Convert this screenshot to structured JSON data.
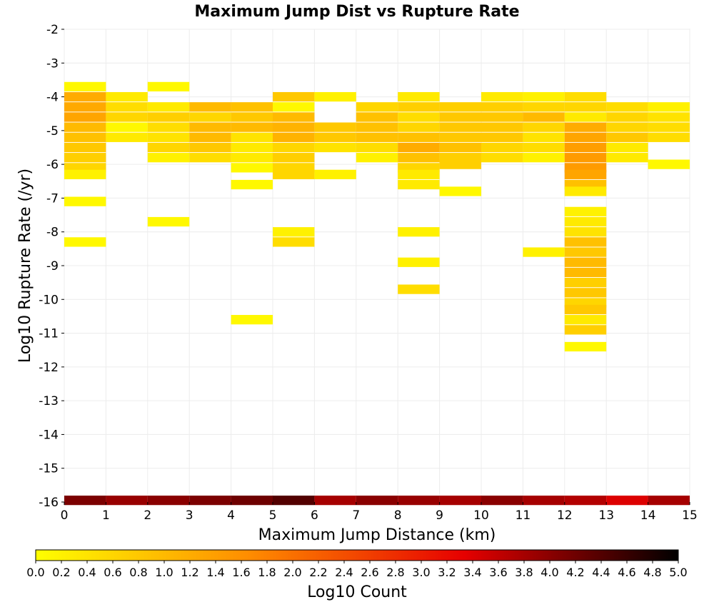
{
  "chart_data": {
    "type": "heatmap",
    "title": "Maximum Jump Dist vs Rupture Rate",
    "xlabel": "Maximum Jump Distance (km)",
    "ylabel": "Log10 Rupture Rate (/yr)",
    "colorbar_label": "Log10 Count",
    "xlim": [
      0,
      15
    ],
    "ylim": [
      -16,
      -2
    ],
    "x_ticks": [
      "0",
      "1",
      "2",
      "3",
      "4",
      "5",
      "6",
      "7",
      "8",
      "9",
      "10",
      "11",
      "12",
      "13",
      "14",
      "15"
    ],
    "y_ticks": [
      "-2",
      "-3",
      "-4",
      "-5",
      "-6",
      "-7",
      "-8",
      "-9",
      "-10",
      "-11",
      "-12",
      "-13",
      "-14",
      "-15",
      "-16"
    ],
    "colorbar_range": [
      0,
      5
    ],
    "colorbar_ticks": [
      "0.0",
      "0.2",
      "0.4",
      "0.6",
      "0.8",
      "1.0",
      "1.2",
      "1.4",
      "1.6",
      "1.8",
      "2.0",
      "2.2",
      "2.4",
      "2.6",
      "2.8",
      "3.0",
      "3.2",
      "3.4",
      "3.6",
      "3.8",
      "4.0",
      "4.2",
      "4.4",
      "4.6",
      "4.8",
      "5.0"
    ],
    "colormap": [
      "#ffff00",
      "#ff8c00",
      "#e60000",
      "#000000"
    ],
    "bin_width_x": 1,
    "bin_height_y": 0.28,
    "grid": true,
    "legend": "colorbar-bottom",
    "cells": [
      {
        "x": 0,
        "y": -3.7,
        "v": 0.1
      },
      {
        "x": 0,
        "y": -4.0,
        "v": 1.2
      },
      {
        "x": 0,
        "y": -4.3,
        "v": 1.25
      },
      {
        "x": 0,
        "y": -4.6,
        "v": 1.3
      },
      {
        "x": 0,
        "y": -4.9,
        "v": 1.0
      },
      {
        "x": 0,
        "y": -5.2,
        "v": 0.9
      },
      {
        "x": 0,
        "y": -5.5,
        "v": 0.8
      },
      {
        "x": 0,
        "y": -5.8,
        "v": 0.7
      },
      {
        "x": 0,
        "y": -6.1,
        "v": 0.6
      },
      {
        "x": 0,
        "y": -6.3,
        "v": 0.2
      },
      {
        "x": 0,
        "y": -7.1,
        "v": 0.1
      },
      {
        "x": 0,
        "y": -8.3,
        "v": 0.1
      },
      {
        "x": 1,
        "y": -4.0,
        "v": 0.3
      },
      {
        "x": 1,
        "y": -4.3,
        "v": 0.5
      },
      {
        "x": 1,
        "y": -4.6,
        "v": 0.6
      },
      {
        "x": 1,
        "y": -4.9,
        "v": 0.1
      },
      {
        "x": 1,
        "y": -5.2,
        "v": 0.3
      },
      {
        "x": 2,
        "y": -3.7,
        "v": 0.1
      },
      {
        "x": 2,
        "y": -4.3,
        "v": 0.3
      },
      {
        "x": 2,
        "y": -4.6,
        "v": 0.7
      },
      {
        "x": 2,
        "y": -4.9,
        "v": 0.5
      },
      {
        "x": 2,
        "y": -5.2,
        "v": 0.4
      },
      {
        "x": 2,
        "y": -5.5,
        "v": 0.6
      },
      {
        "x": 2,
        "y": -5.8,
        "v": 0.2
      },
      {
        "x": 2,
        "y": -7.7,
        "v": 0.1
      },
      {
        "x": 3,
        "y": -4.3,
        "v": 1.0
      },
      {
        "x": 3,
        "y": -4.6,
        "v": 0.6
      },
      {
        "x": 3,
        "y": -4.9,
        "v": 1.0
      },
      {
        "x": 3,
        "y": -5.2,
        "v": 1.0
      },
      {
        "x": 3,
        "y": -5.5,
        "v": 0.8
      },
      {
        "x": 3,
        "y": -5.8,
        "v": 0.5
      },
      {
        "x": 4,
        "y": -4.3,
        "v": 0.9
      },
      {
        "x": 4,
        "y": -4.6,
        "v": 0.8
      },
      {
        "x": 4,
        "y": -4.9,
        "v": 1.0
      },
      {
        "x": 4,
        "y": -5.2,
        "v": 0.4
      },
      {
        "x": 4,
        "y": -5.5,
        "v": 0.3
      },
      {
        "x": 4,
        "y": -5.8,
        "v": 0.3
      },
      {
        "x": 4,
        "y": -6.1,
        "v": 0.1
      },
      {
        "x": 4,
        "y": -6.6,
        "v": 0.1
      },
      {
        "x": 4,
        "y": -10.6,
        "v": 0.1
      },
      {
        "x": 5,
        "y": -4.0,
        "v": 0.8
      },
      {
        "x": 5,
        "y": -4.3,
        "v": 0.1
      },
      {
        "x": 5,
        "y": -4.6,
        "v": 1.0
      },
      {
        "x": 5,
        "y": -4.9,
        "v": 1.1
      },
      {
        "x": 5,
        "y": -5.2,
        "v": 1.1
      },
      {
        "x": 5,
        "y": -5.5,
        "v": 0.6
      },
      {
        "x": 5,
        "y": -5.8,
        "v": 0.7
      },
      {
        "x": 5,
        "y": -6.1,
        "v": 0.6
      },
      {
        "x": 5,
        "y": -6.3,
        "v": 0.6
      },
      {
        "x": 5,
        "y": -8.0,
        "v": 0.2
      },
      {
        "x": 5,
        "y": -8.3,
        "v": 0.5
      },
      {
        "x": 6,
        "y": -4.0,
        "v": 0.2
      },
      {
        "x": 6,
        "y": -4.9,
        "v": 0.8
      },
      {
        "x": 6,
        "y": -5.2,
        "v": 0.8
      },
      {
        "x": 6,
        "y": -5.5,
        "v": 0.4
      },
      {
        "x": 6,
        "y": -6.3,
        "v": 0.2
      },
      {
        "x": 7,
        "y": -4.3,
        "v": 0.6
      },
      {
        "x": 7,
        "y": -4.6,
        "v": 0.9
      },
      {
        "x": 7,
        "y": -4.9,
        "v": 0.9
      },
      {
        "x": 7,
        "y": -5.2,
        "v": 0.9
      },
      {
        "x": 7,
        "y": -5.5,
        "v": 0.5
      },
      {
        "x": 7,
        "y": -5.8,
        "v": 0.2
      },
      {
        "x": 8,
        "y": -4.0,
        "v": 0.3
      },
      {
        "x": 8,
        "y": -4.3,
        "v": 0.7
      },
      {
        "x": 8,
        "y": -4.6,
        "v": 0.5
      },
      {
        "x": 8,
        "y": -4.9,
        "v": 0.6
      },
      {
        "x": 8,
        "y": -5.2,
        "v": 0.9
      },
      {
        "x": 8,
        "y": -5.5,
        "v": 1.2
      },
      {
        "x": 8,
        "y": -5.8,
        "v": 0.9
      },
      {
        "x": 8,
        "y": -6.1,
        "v": 0.6
      },
      {
        "x": 8,
        "y": -6.3,
        "v": 0.3
      },
      {
        "x": 8,
        "y": -6.6,
        "v": 0.3
      },
      {
        "x": 8,
        "y": -8.0,
        "v": 0.2
      },
      {
        "x": 8,
        "y": -8.9,
        "v": 0.2
      },
      {
        "x": 8,
        "y": -9.7,
        "v": 0.5
      },
      {
        "x": 9,
        "y": -4.3,
        "v": 0.7
      },
      {
        "x": 9,
        "y": -4.6,
        "v": 0.8
      },
      {
        "x": 9,
        "y": -4.9,
        "v": 0.8
      },
      {
        "x": 9,
        "y": -5.2,
        "v": 0.8
      },
      {
        "x": 9,
        "y": -5.5,
        "v": 0.9
      },
      {
        "x": 9,
        "y": -5.8,
        "v": 0.7
      },
      {
        "x": 9,
        "y": -6.0,
        "v": 0.7
      },
      {
        "x": 9,
        "y": -6.8,
        "v": 0.1
      },
      {
        "x": 10,
        "y": -4.0,
        "v": 0.3
      },
      {
        "x": 10,
        "y": -4.3,
        "v": 0.7
      },
      {
        "x": 10,
        "y": -4.6,
        "v": 0.8
      },
      {
        "x": 10,
        "y": -4.9,
        "v": 0.8
      },
      {
        "x": 10,
        "y": -5.2,
        "v": 0.8
      },
      {
        "x": 10,
        "y": -5.5,
        "v": 0.6
      },
      {
        "x": 10,
        "y": -5.8,
        "v": 0.5
      },
      {
        "x": 11,
        "y": -4.0,
        "v": 0.2
      },
      {
        "x": 11,
        "y": -4.3,
        "v": 0.6
      },
      {
        "x": 11,
        "y": -4.6,
        "v": 1.0
      },
      {
        "x": 11,
        "y": -4.9,
        "v": 0.6
      },
      {
        "x": 11,
        "y": -5.2,
        "v": 0.4
      },
      {
        "x": 11,
        "y": -5.5,
        "v": 0.5
      },
      {
        "x": 11,
        "y": -5.8,
        "v": 0.2
      },
      {
        "x": 11,
        "y": -8.6,
        "v": 0.2
      },
      {
        "x": 12,
        "y": -4.0,
        "v": 0.5
      },
      {
        "x": 12,
        "y": -4.3,
        "v": 0.6
      },
      {
        "x": 12,
        "y": -4.6,
        "v": 0.3
      },
      {
        "x": 12,
        "y": -4.9,
        "v": 1.2
      },
      {
        "x": 12,
        "y": -5.2,
        "v": 1.3
      },
      {
        "x": 12,
        "y": -5.5,
        "v": 1.4
      },
      {
        "x": 12,
        "y": -5.8,
        "v": 1.45
      },
      {
        "x": 12,
        "y": -6.1,
        "v": 1.45
      },
      {
        "x": 12,
        "y": -6.3,
        "v": 1.3
      },
      {
        "x": 12,
        "y": -6.6,
        "v": 0.9
      },
      {
        "x": 12,
        "y": -6.8,
        "v": 0.3
      },
      {
        "x": 12,
        "y": -7.4,
        "v": 0.2
      },
      {
        "x": 12,
        "y": -7.7,
        "v": 0.3
      },
      {
        "x": 12,
        "y": -8.0,
        "v": 0.4
      },
      {
        "x": 12,
        "y": -8.3,
        "v": 0.9
      },
      {
        "x": 12,
        "y": -8.6,
        "v": 0.8
      },
      {
        "x": 12,
        "y": -8.9,
        "v": 1.0
      },
      {
        "x": 12,
        "y": -9.2,
        "v": 1.0
      },
      {
        "x": 12,
        "y": -9.5,
        "v": 0.7
      },
      {
        "x": 12,
        "y": -9.8,
        "v": 0.8
      },
      {
        "x": 12,
        "y": -10.1,
        "v": 0.6
      },
      {
        "x": 12,
        "y": -10.3,
        "v": 0.8
      },
      {
        "x": 12,
        "y": -10.6,
        "v": 0.3
      },
      {
        "x": 12,
        "y": -10.9,
        "v": 0.7
      },
      {
        "x": 12,
        "y": -11.4,
        "v": 0.1
      },
      {
        "x": 13,
        "y": -4.3,
        "v": 0.5
      },
      {
        "x": 13,
        "y": -4.6,
        "v": 0.6
      },
      {
        "x": 13,
        "y": -4.9,
        "v": 0.6
      },
      {
        "x": 13,
        "y": -5.2,
        "v": 0.8
      },
      {
        "x": 13,
        "y": -5.5,
        "v": 0.3
      },
      {
        "x": 13,
        "y": -5.8,
        "v": 0.3
      },
      {
        "x": 14,
        "y": -4.3,
        "v": 0.2
      },
      {
        "x": 14,
        "y": -4.6,
        "v": 0.4
      },
      {
        "x": 14,
        "y": -4.9,
        "v": 0.5
      },
      {
        "x": 14,
        "y": -5.2,
        "v": 0.5
      },
      {
        "x": 14,
        "y": -6.0,
        "v": 0.1
      },
      {
        "x": 0,
        "y": -15.95,
        "v": 4.1
      },
      {
        "x": 1,
        "y": -15.95,
        "v": 3.9
      },
      {
        "x": 2,
        "y": -15.95,
        "v": 4.0
      },
      {
        "x": 3,
        "y": -15.95,
        "v": 4.1
      },
      {
        "x": 4,
        "y": -15.95,
        "v": 4.2
      },
      {
        "x": 5,
        "y": -15.95,
        "v": 4.4
      },
      {
        "x": 6,
        "y": -15.95,
        "v": 3.8
      },
      {
        "x": 7,
        "y": -15.95,
        "v": 4.0
      },
      {
        "x": 8,
        "y": -15.95,
        "v": 3.9
      },
      {
        "x": 9,
        "y": -15.95,
        "v": 3.8
      },
      {
        "x": 10,
        "y": -15.95,
        "v": 4.0
      },
      {
        "x": 11,
        "y": -15.95,
        "v": 3.8
      },
      {
        "x": 12,
        "y": -15.95,
        "v": 3.7
      },
      {
        "x": 13,
        "y": -15.95,
        "v": 3.4
      },
      {
        "x": 14,
        "y": -15.95,
        "v": 3.8
      }
    ]
  }
}
